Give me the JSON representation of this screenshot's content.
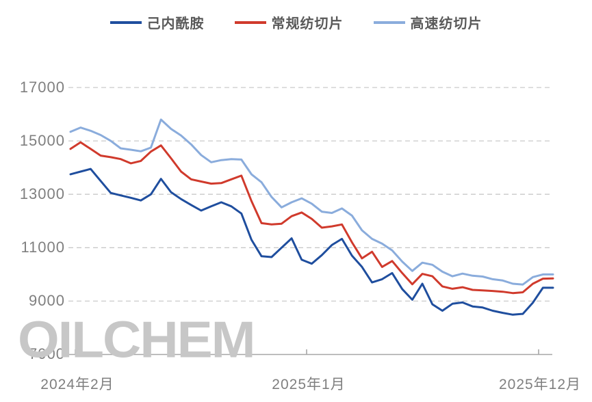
{
  "watermark": "OILCHEM",
  "legend": [
    {
      "label": "己内酰胺"
    },
    {
      "label": "常规纺切片"
    },
    {
      "label": "高速纺切片"
    }
  ],
  "chart_data": {
    "type": "line",
    "title": "",
    "legend_position": "top-center",
    "grid": "dashed-horizontal",
    "ylim": [
      7000,
      17000
    ],
    "y_ticks": [
      17000,
      15000,
      13000,
      11000,
      9000,
      7000
    ],
    "y_tick_labels": [
      "17000",
      "15000",
      "13000",
      "11000",
      "9000",
      "7000"
    ],
    "x_axis_labels": [
      "2024年2月",
      "2025年1月",
      "2025年12月"
    ],
    "x_range": "2024-02 to 2025-12",
    "colors": {
      "grid": "#c9c9c9",
      "axis": "#a6a6a6",
      "tick_text": "#7f7f7f",
      "legend_text": "#595959",
      "watermark": "#c7c7c7"
    },
    "series": [
      {
        "name": "己内酰胺",
        "color": "#1f4e9e",
        "values": [
          13750,
          13850,
          13950,
          13500,
          13050,
          12960,
          12870,
          12770,
          13000,
          13580,
          13080,
          12820,
          12600,
          12390,
          12550,
          12700,
          12550,
          12280,
          11300,
          10680,
          10650,
          11000,
          11350,
          10550,
          10400,
          10720,
          11100,
          11330,
          10700,
          10280,
          9700,
          9820,
          10050,
          9450,
          9050,
          9650,
          8880,
          8640,
          8900,
          8950,
          8800,
          8760,
          8640,
          8560,
          8490,
          8520,
          8940,
          9500,
          9500
        ]
      },
      {
        "name": "常规纺切片",
        "color": "#d03a2c",
        "values": [
          14700,
          14950,
          14700,
          14450,
          14390,
          14320,
          14160,
          14250,
          14600,
          14830,
          14350,
          13850,
          13560,
          13480,
          13400,
          13420,
          13560,
          13700,
          12750,
          11920,
          11870,
          11900,
          12180,
          12320,
          12080,
          11750,
          11800,
          11870,
          11200,
          10600,
          10850,
          10280,
          10500,
          10050,
          9630,
          10020,
          9930,
          9550,
          9460,
          9520,
          9420,
          9400,
          9380,
          9350,
          9300,
          9330,
          9650,
          9840,
          9850
        ]
      },
      {
        "name": "高速纺切片",
        "color": "#8aacdc",
        "values": [
          15340,
          15500,
          15380,
          15220,
          15000,
          14720,
          14670,
          14610,
          14750,
          15800,
          15450,
          15200,
          14870,
          14470,
          14200,
          14280,
          14320,
          14300,
          13750,
          13450,
          12900,
          12510,
          12700,
          12850,
          12650,
          12350,
          12300,
          12470,
          12200,
          11650,
          11330,
          11150,
          10900,
          10480,
          10130,
          10440,
          10360,
          10100,
          9930,
          10030,
          9950,
          9920,
          9820,
          9770,
          9650,
          9620,
          9900,
          10000,
          10000
        ]
      }
    ]
  }
}
